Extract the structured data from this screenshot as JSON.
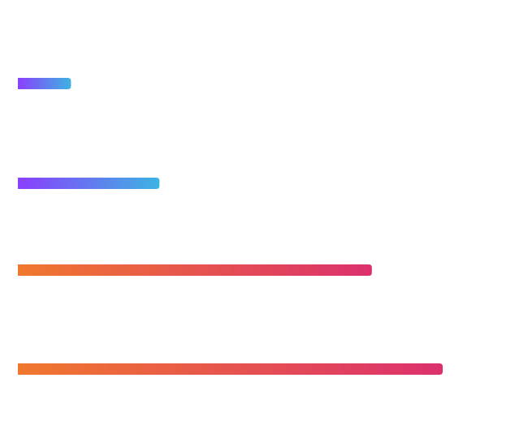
{
  "chart_data": {
    "type": "bar",
    "orientation": "horizontal",
    "categories": [
      "",
      "",
      "",
      ""
    ],
    "values": [
      15,
      40,
      100,
      120
    ],
    "xlim": [
      0,
      120
    ],
    "grid": false,
    "legend": "none",
    "bars": [
      {
        "gradient": [
          "#8a3ffc",
          "#3db3e3"
        ]
      },
      {
        "gradient": [
          "#8a3ffc",
          "#3db3e3"
        ]
      },
      {
        "gradient": [
          "#f0782e",
          "#dc306e"
        ]
      },
      {
        "gradient": [
          "#f0782e",
          "#dc306e"
        ]
      }
    ]
  }
}
